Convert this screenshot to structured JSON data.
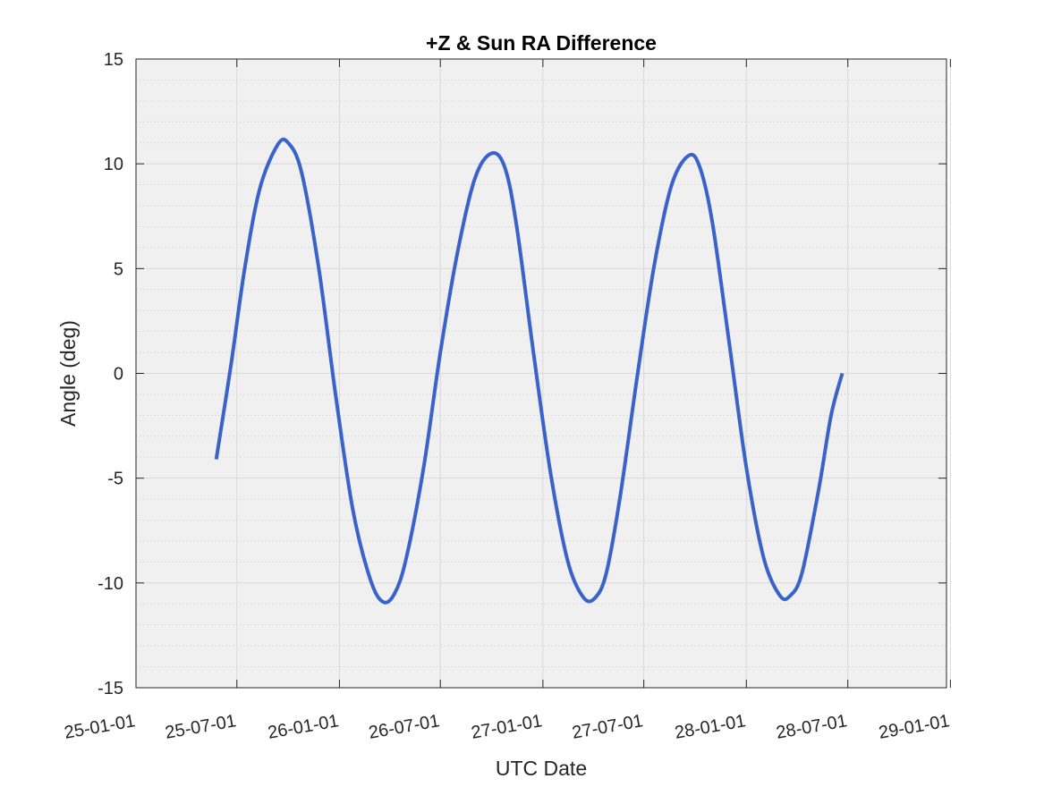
{
  "chart_data": {
    "type": "line",
    "title": "+Z & Sun RA Difference",
    "xlabel": "UTC Date",
    "ylabel": "Angle (deg)",
    "x_axis_type": "date",
    "xlim": [
      "2025-01-01",
      "2028-12-25"
    ],
    "ylim": [
      -15,
      15
    ],
    "grid": true,
    "minor_grid_y": true,
    "x_ticks": [
      {
        "date": "2025-01-01",
        "label": "25-01-01"
      },
      {
        "date": "2025-07-01",
        "label": "25-07-01"
      },
      {
        "date": "2026-01-01",
        "label": "26-01-01"
      },
      {
        "date": "2026-07-01",
        "label": "26-07-01"
      },
      {
        "date": "2027-01-01",
        "label": "27-01-01"
      },
      {
        "date": "2027-07-01",
        "label": "27-07-01"
      },
      {
        "date": "2028-01-01",
        "label": "28-01-01"
      },
      {
        "date": "2028-07-01",
        "label": "28-07-01"
      },
      {
        "date": "2029-01-01",
        "label": "29-01-01"
      }
    ],
    "y_ticks": [
      -15,
      -10,
      -5,
      0,
      5,
      10,
      15
    ],
    "y_tick_labels": [
      "-15",
      "-10",
      "-5",
      "0",
      "5",
      "10",
      "15"
    ],
    "series": [
      {
        "color": "#3a63c9",
        "points": [
          {
            "x": "2025-05-25",
            "y": -4.1
          },
          {
            "x": "2025-06-21",
            "y": 0.5
          },
          {
            "x": "2025-07-15",
            "y": 5.0
          },
          {
            "x": "2025-08-11",
            "y": 8.8
          },
          {
            "x": "2025-09-12",
            "y": 10.9
          },
          {
            "x": "2025-10-01",
            "y": 11.0
          },
          {
            "x": "2025-10-25",
            "y": 9.6
          },
          {
            "x": "2025-11-25",
            "y": 5.0
          },
          {
            "x": "2025-12-25",
            "y": -1.0
          },
          {
            "x": "2026-01-25",
            "y": -6.5
          },
          {
            "x": "2026-02-25",
            "y": -9.8
          },
          {
            "x": "2026-03-20",
            "y": -10.9
          },
          {
            "x": "2026-04-10",
            "y": -10.5
          },
          {
            "x": "2026-05-01",
            "y": -8.8
          },
          {
            "x": "2026-06-01",
            "y": -4.5
          },
          {
            "x": "2026-07-01",
            "y": 1.0
          },
          {
            "x": "2026-08-01",
            "y": 5.8
          },
          {
            "x": "2026-09-01",
            "y": 9.3
          },
          {
            "x": "2026-10-01",
            "y": 10.5
          },
          {
            "x": "2026-10-25",
            "y": 9.8
          },
          {
            "x": "2026-11-15",
            "y": 7.0
          },
          {
            "x": "2026-12-15",
            "y": 1.0
          },
          {
            "x": "2027-01-15",
            "y": -4.8
          },
          {
            "x": "2027-02-15",
            "y": -9.0
          },
          {
            "x": "2027-03-15",
            "y": -10.7
          },
          {
            "x": "2027-04-05",
            "y": -10.7
          },
          {
            "x": "2027-04-25",
            "y": -9.5
          },
          {
            "x": "2027-05-20",
            "y": -5.8
          },
          {
            "x": "2027-06-20",
            "y": 0.0
          },
          {
            "x": "2027-07-20",
            "y": 5.2
          },
          {
            "x": "2027-08-20",
            "y": 9.0
          },
          {
            "x": "2027-09-20",
            "y": 10.4
          },
          {
            "x": "2027-10-10",
            "y": 9.8
          },
          {
            "x": "2027-11-01",
            "y": 7.2
          },
          {
            "x": "2027-12-01",
            "y": 1.5
          },
          {
            "x": "2028-01-01",
            "y": -4.5
          },
          {
            "x": "2028-02-01",
            "y": -8.8
          },
          {
            "x": "2028-03-01",
            "y": -10.6
          },
          {
            "x": "2028-03-20",
            "y": -10.6
          },
          {
            "x": "2028-04-10",
            "y": -9.5
          },
          {
            "x": "2028-05-10",
            "y": -5.5
          },
          {
            "x": "2028-06-01",
            "y": -2.0
          },
          {
            "x": "2028-06-21",
            "y": 0.0
          }
        ]
      }
    ]
  }
}
